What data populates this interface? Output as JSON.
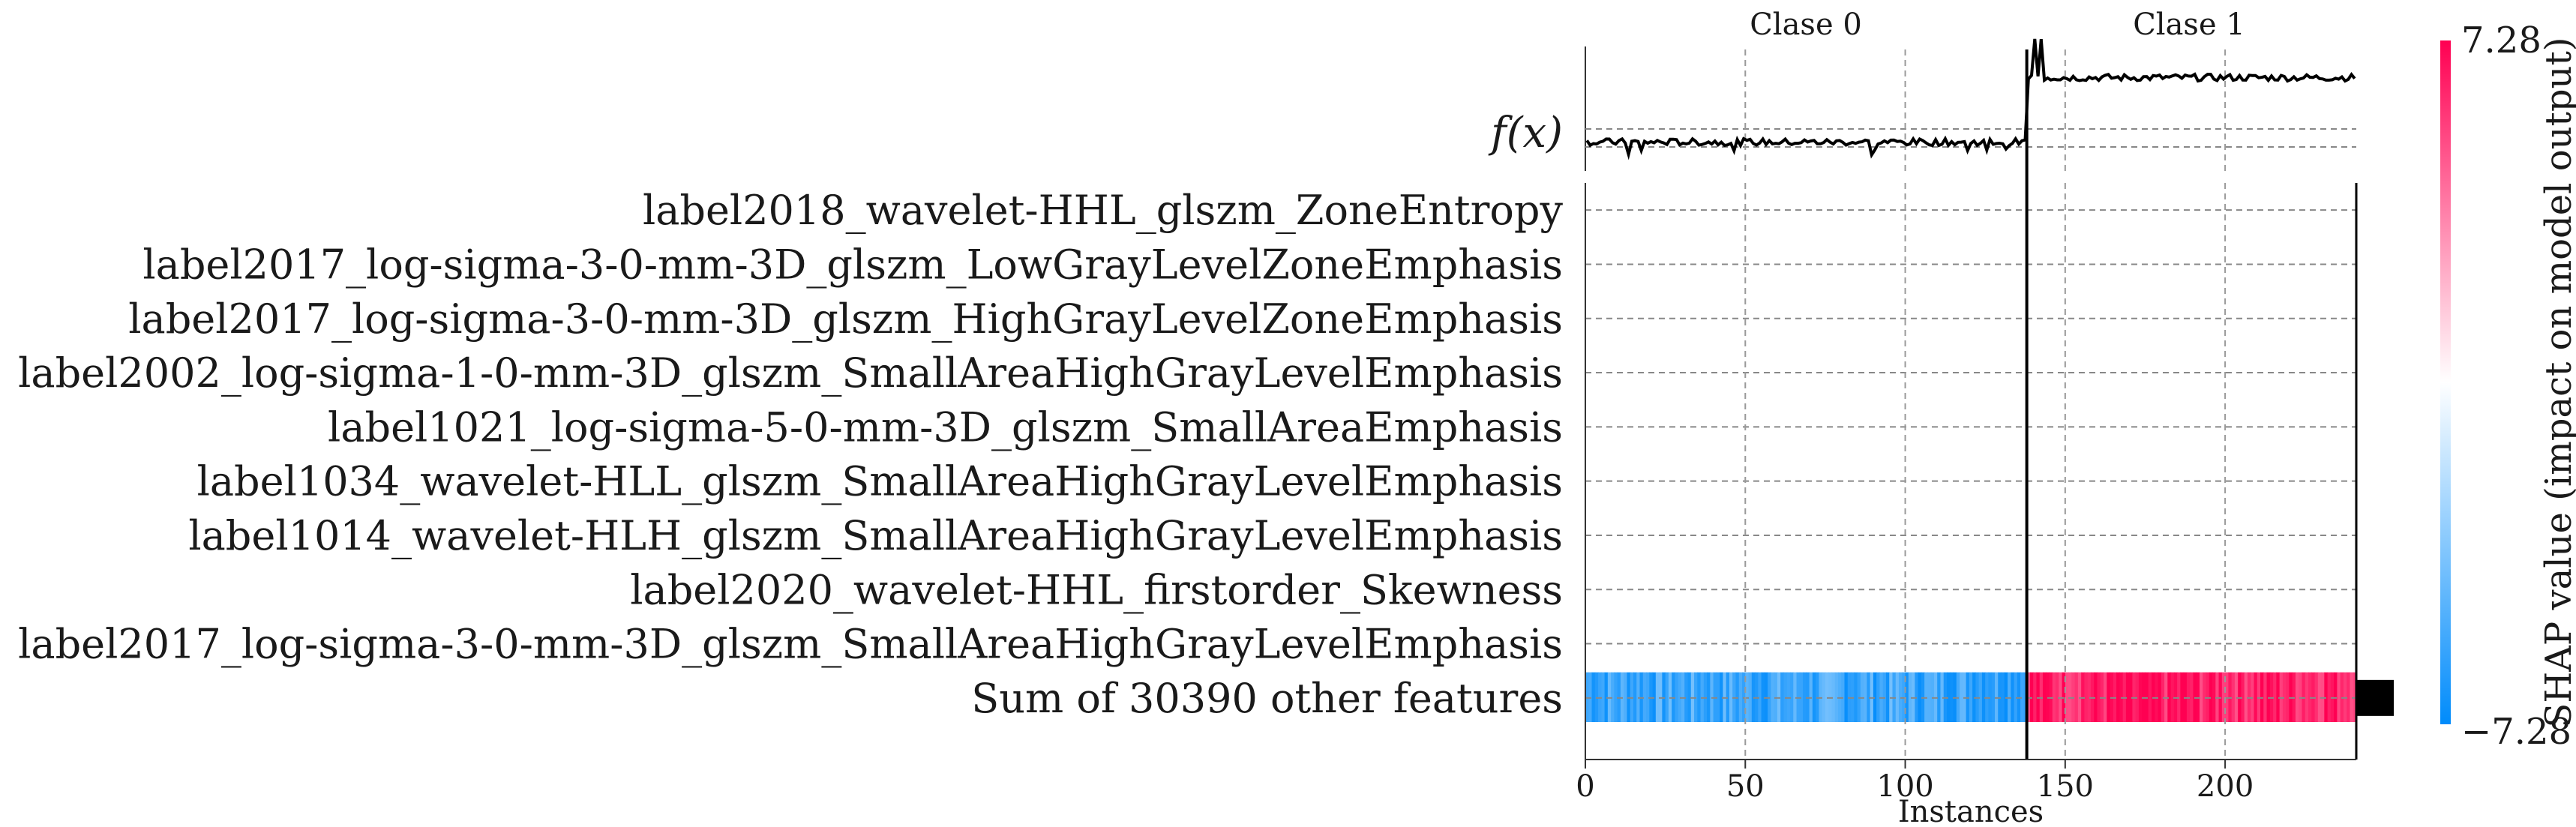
{
  "chart_data": {
    "type": "heatmap",
    "title": "",
    "xlabel": "Instances",
    "ylabel": "",
    "xlim": [
      0,
      241
    ],
    "x_ticks": [
      "0",
      "50",
      "100",
      "150",
      "200"
    ],
    "x_tick_values": [
      0,
      50,
      100,
      150,
      200
    ],
    "class_groups": [
      {
        "label": "Clase 0",
        "start": 0,
        "end": 138
      },
      {
        "label": "Clase 1",
        "start": 138,
        "end": 241
      }
    ],
    "fx_label": "f(x)",
    "features": [
      {
        "name": "label2018_wavelet-HHL_glszm_ZoneEntropy",
        "importance": 0.0
      },
      {
        "name": "label2017_log-sigma-3-0-mm-3D_glszm_LowGrayLevelZoneEmphasis",
        "importance": 0.0
      },
      {
        "name": "label2017_log-sigma-3-0-mm-3D_glszm_HighGrayLevelZoneEmphasis",
        "importance": 0.0
      },
      {
        "name": "label2002_log-sigma-1-0-mm-3D_glszm_SmallAreaHighGrayLevelEmphasis",
        "importance": 0.0
      },
      {
        "name": "label1021_log-sigma-5-0-mm-3D_glszm_SmallAreaEmphasis",
        "importance": 0.0
      },
      {
        "name": "label1034_wavelet-HLL_glszm_SmallAreaHighGrayLevelEmphasis",
        "importance": 0.0
      },
      {
        "name": "label1014_wavelet-HLH_glszm_SmallAreaHighGrayLevelEmphasis",
        "importance": 0.0
      },
      {
        "name": "label2020_wavelet-HHL_firstorder_Skewness",
        "importance": 0.0
      },
      {
        "name": "label2017_log-sigma-3-0-mm-3D_glszm_SmallAreaHighGrayLevelEmphasis",
        "importance": 0.0
      },
      {
        "name": "Sum of 30390 other features",
        "importance": 7.28
      }
    ],
    "sum_row": {
      "class0_value": -5.5,
      "class1_value": 6.5
    },
    "colorbar": {
      "label": "SHAP value (impact on model output)",
      "max_label": "7.28",
      "min_label": "−7.28",
      "vmin": -7.28,
      "vmax": 7.28,
      "colors": [
        "#008bfb",
        "#ffffff",
        "#ff0052"
      ]
    }
  }
}
